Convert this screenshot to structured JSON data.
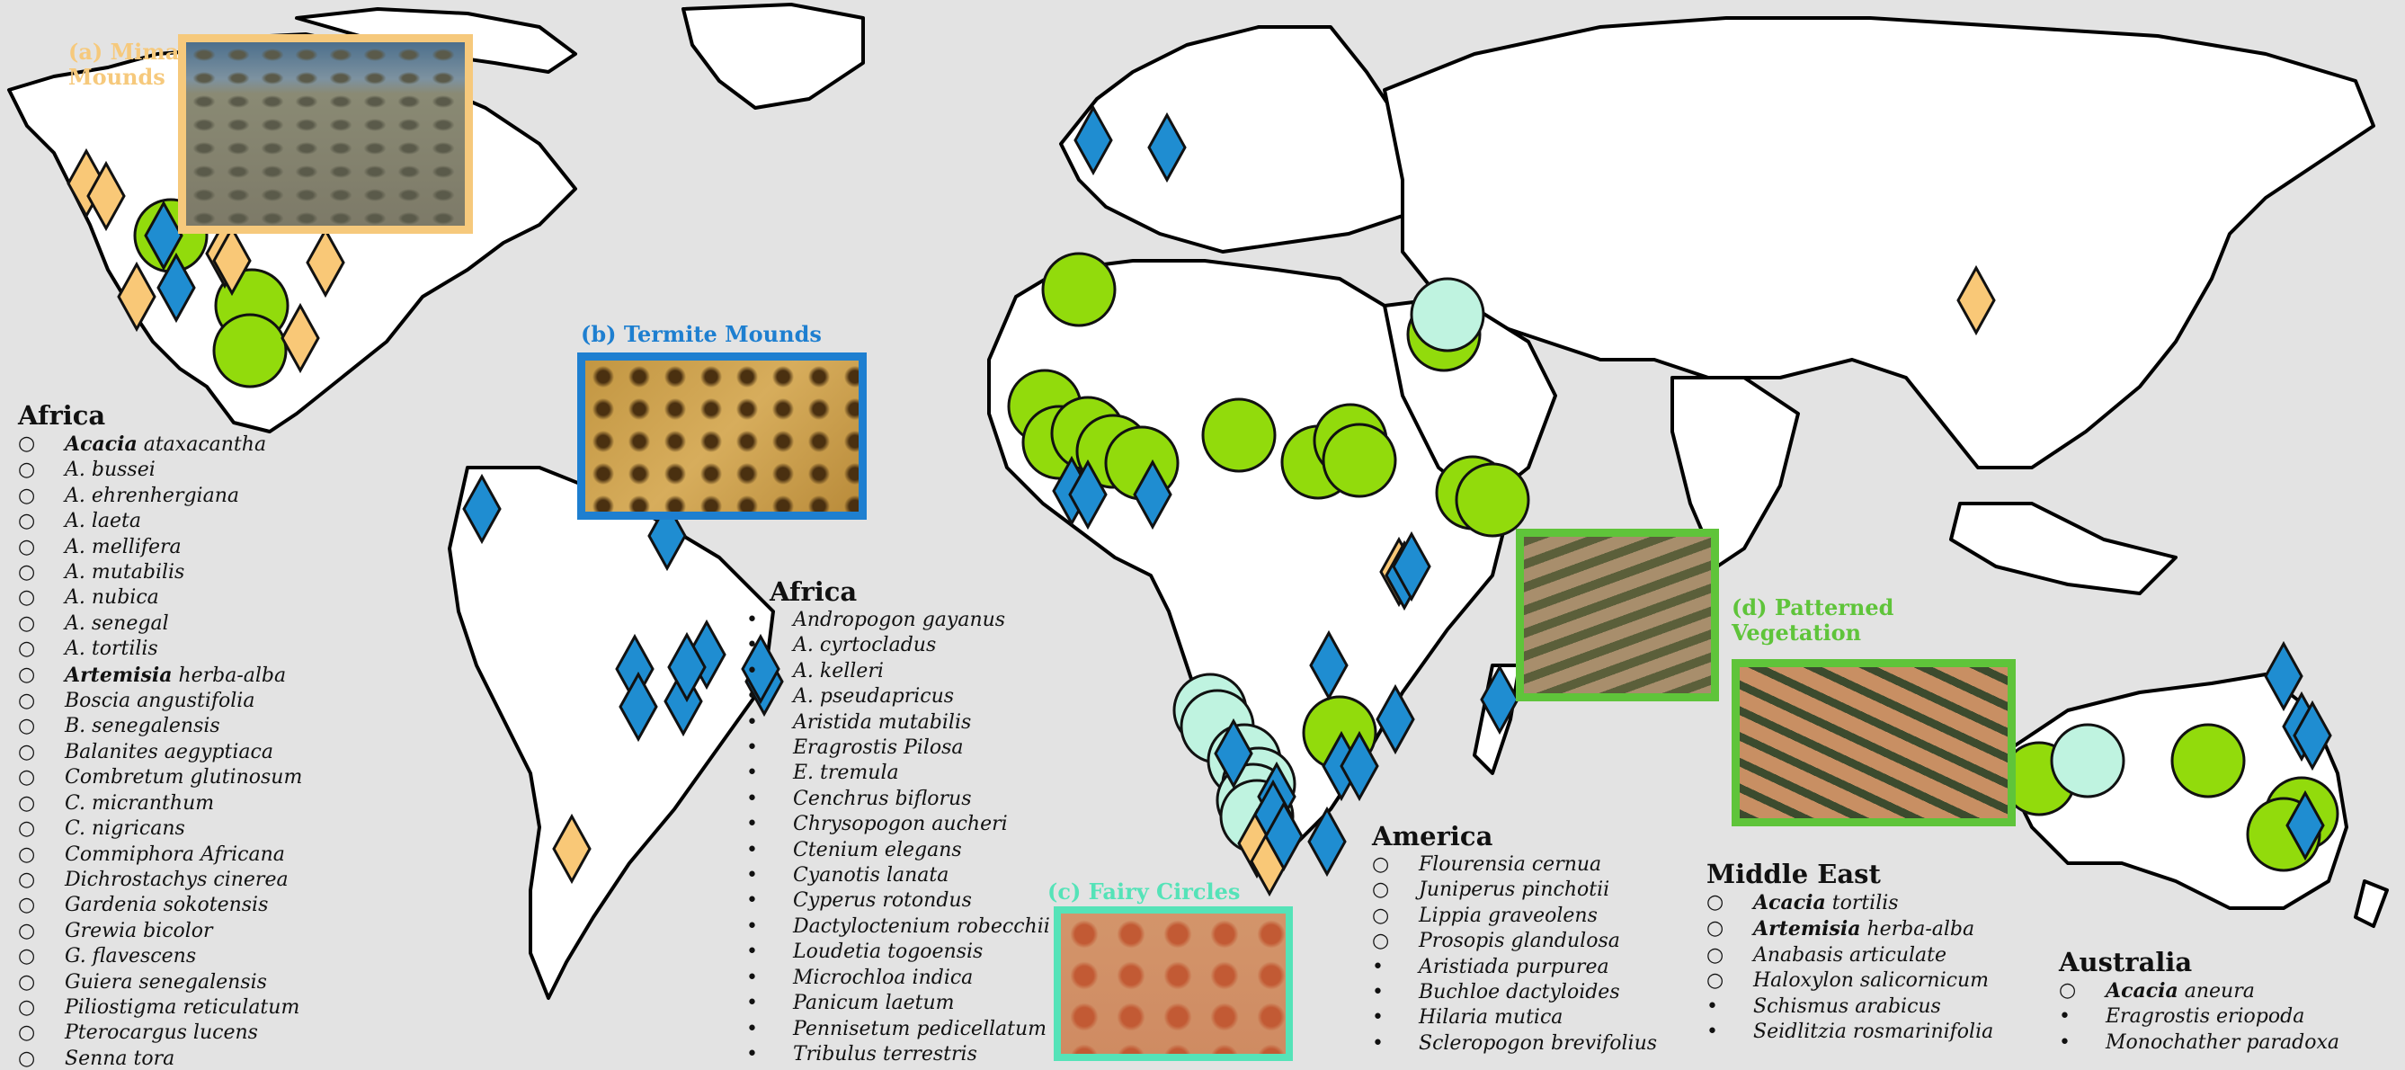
{
  "colors": {
    "ocean": "#e3e3e3",
    "land": "#ffffff",
    "border": "#000000",
    "mima": "#f9c877",
    "termite": "#1f8dd1",
    "fairy": "#bff3e0",
    "vegetation": "#92db0c",
    "mima_frame": "#f6c97c",
    "termite_frame": "#1e7fd0",
    "fairy_frame": "#55e3b8",
    "vegetation_frame": "#5fc43a"
  },
  "photos": {
    "mima": {
      "title_line1": "(a) Mima",
      "title_line2": "Mounds"
    },
    "termite": {
      "title": "(b) Termite Mounds"
    },
    "fairy": {
      "title": "(c) Fairy Circles"
    },
    "vegetation": {
      "title_line1": "(d) Patterned",
      "title_line2": "Vegetation"
    }
  },
  "legend_africa_trees": {
    "heading": "Africa",
    "items": [
      {
        "marker": "○",
        "bold": "Acacia",
        "rest": " ataxacantha"
      },
      {
        "marker": "○",
        "bold": "",
        "rest": "A. bussei"
      },
      {
        "marker": "○",
        "bold": "",
        "rest": "A. ehrenhergiana"
      },
      {
        "marker": "○",
        "bold": "",
        "rest": "A. laeta"
      },
      {
        "marker": "○",
        "bold": "",
        "rest": "A. mellifera"
      },
      {
        "marker": "○",
        "bold": "",
        "rest": "A. mutabilis"
      },
      {
        "marker": "○",
        "bold": "",
        "rest": "A. nubica"
      },
      {
        "marker": "○",
        "bold": "",
        "rest": "A. senegal"
      },
      {
        "marker": "○",
        "bold": "",
        "rest": "A. tortilis"
      },
      {
        "marker": "○",
        "bold": "Artemisia",
        "rest": " herba-alba"
      },
      {
        "marker": "○",
        "bold": "",
        "rest": "Boscia angustifolia"
      },
      {
        "marker": "○",
        "bold": "",
        "rest": "B. senegalensis"
      },
      {
        "marker": "○",
        "bold": "",
        "rest": "Balanites aegyptiaca"
      },
      {
        "marker": "○",
        "bold": "",
        "rest": "Combretum glutinosum"
      },
      {
        "marker": "○",
        "bold": "",
        "rest": "C. micranthum"
      },
      {
        "marker": "○",
        "bold": "",
        "rest": "C. nigricans"
      },
      {
        "marker": "○",
        "bold": "",
        "rest": "Commiphora Africana"
      },
      {
        "marker": "○",
        "bold": "",
        "rest": "Dichrostachys cinerea"
      },
      {
        "marker": "○",
        "bold": "",
        "rest": "Gardenia sokotensis"
      },
      {
        "marker": "○",
        "bold": "",
        "rest": "Grewia bicolor"
      },
      {
        "marker": "○",
        "bold": "",
        "rest": "G. flavescens"
      },
      {
        "marker": "○",
        "bold": "",
        "rest": "Guiera senegalensis"
      },
      {
        "marker": "○",
        "bold": "",
        "rest": "Piliostigma reticulatum"
      },
      {
        "marker": "○",
        "bold": "",
        "rest": "Pterocargus lucens"
      },
      {
        "marker": "○",
        "bold": "",
        "rest": "Senna tora"
      }
    ]
  },
  "legend_africa_grasses": {
    "heading": "Africa",
    "items": [
      {
        "marker": "•",
        "bold": "",
        "rest": "Andropogon gayanus"
      },
      {
        "marker": "•",
        "bold": "",
        "rest": "A. cyrtocladus"
      },
      {
        "marker": "•",
        "bold": "",
        "rest": "A. kelleri"
      },
      {
        "marker": "•",
        "bold": "",
        "rest": "A. pseudapricus"
      },
      {
        "marker": "•",
        "bold": "",
        "rest": "Aristida mutabilis"
      },
      {
        "marker": "•",
        "bold": "",
        "rest": "Eragrostis Pilosa"
      },
      {
        "marker": "•",
        "bold": "",
        "rest": "E. tremula"
      },
      {
        "marker": "•",
        "bold": "",
        "rest": "Cenchrus biflorus"
      },
      {
        "marker": "•",
        "bold": "",
        "rest": "Chrysopogon aucheri"
      },
      {
        "marker": "•",
        "bold": "",
        "rest": "Ctenium elegans"
      },
      {
        "marker": "•",
        "bold": "",
        "rest": "Cyanotis lanata"
      },
      {
        "marker": "•",
        "bold": "",
        "rest": "Cyperus rotondus"
      },
      {
        "marker": "•",
        "bold": "",
        "rest": "Dactyloctenium robecchii"
      },
      {
        "marker": "•",
        "bold": "",
        "rest": "Loudetia togoensis"
      },
      {
        "marker": "•",
        "bold": "",
        "rest": "Microchloa indica"
      },
      {
        "marker": "•",
        "bold": "",
        "rest": "Panicum laetum"
      },
      {
        "marker": "•",
        "bold": "",
        "rest": "Pennisetum pedicellatum"
      },
      {
        "marker": "•",
        "bold": "",
        "rest": "Tribulus terrestris"
      }
    ]
  },
  "legend_america": {
    "heading": "America",
    "items": [
      {
        "marker": "○",
        "bold": "",
        "rest": "Flourensia cernua"
      },
      {
        "marker": "○",
        "bold": "",
        "rest": "Juniperus pinchotii"
      },
      {
        "marker": "○",
        "bold": "",
        "rest": "Lippia graveolens"
      },
      {
        "marker": "○",
        "bold": "",
        "rest": "Prosopis glandulosa"
      },
      {
        "marker": "•",
        "bold": "",
        "rest": "Aristiada purpurea"
      },
      {
        "marker": "•",
        "bold": "",
        "rest": "Buchloe dactyloides"
      },
      {
        "marker": "•",
        "bold": "",
        "rest": "Hilaria mutica"
      },
      {
        "marker": "•",
        "bold": "",
        "rest": "Scleropogon brevifolius"
      }
    ]
  },
  "legend_middle_east": {
    "heading": "Middle East",
    "items": [
      {
        "marker": "○",
        "bold": "Acacia",
        "rest": " tortilis"
      },
      {
        "marker": "○",
        "bold": "Artemisia",
        "rest": " herba-alba"
      },
      {
        "marker": "○",
        "bold": "",
        "rest": "Anabasis articulate"
      },
      {
        "marker": "○",
        "bold": "",
        "rest": "Haloxylon salicornicum"
      },
      {
        "marker": "•",
        "bold": "",
        "rest": "Schismus arabicus"
      },
      {
        "marker": "•",
        "bold": "",
        "rest": "Seidlitzia rosmarinifolia"
      }
    ]
  },
  "legend_australia": {
    "heading": "Australia",
    "items": [
      {
        "marker": "○",
        "bold": "Acacia",
        "rest": " aneura"
      },
      {
        "marker": "•",
        "bold": "",
        "rest": "Eragrostis eriopoda"
      },
      {
        "marker": "•",
        "bold": "",
        "rest": "Monochather paradoxa"
      }
    ]
  }
}
